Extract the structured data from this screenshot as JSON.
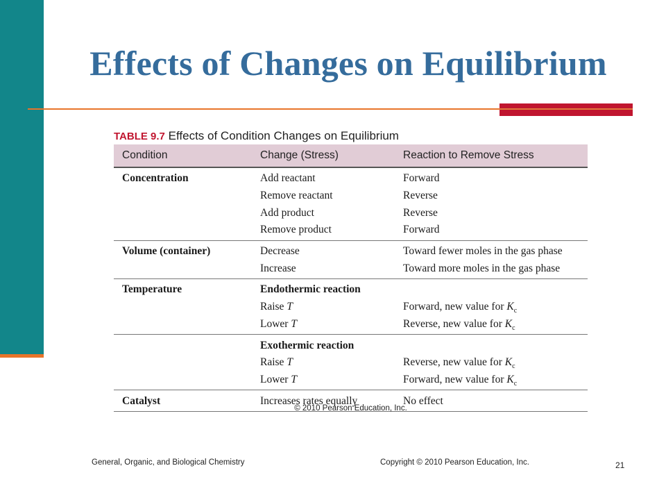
{
  "slide": {
    "title": "Effects of Changes on Equilibrium",
    "colors": {
      "sidebar": "#12868a",
      "accent_orange": "#e8742a",
      "accent_red": "#c0152f",
      "title": "#356c9c",
      "header_bg": "#e1ccd6"
    }
  },
  "table": {
    "label": "TABLE 9.7",
    "caption": "Effects of Condition Changes on Equilibrium",
    "headers": [
      "Condition",
      "Change (Stress)",
      "Reaction to Remove Stress"
    ],
    "groups": [
      {
        "rows": [
          {
            "condition": "Concentration",
            "change": "Add reactant",
            "reaction": "Forward"
          },
          {
            "condition": "",
            "change": "Remove reactant",
            "reaction": "Reverse"
          },
          {
            "condition": "",
            "change": "Add product",
            "reaction": "Reverse"
          },
          {
            "condition": "",
            "change": "Remove product",
            "reaction": "Forward"
          }
        ]
      },
      {
        "rows": [
          {
            "condition": "Volume (container)",
            "change": "Decrease",
            "reaction": "Toward fewer moles in the gas phase"
          },
          {
            "condition": "",
            "change": "Increase",
            "reaction": "Toward more moles in the gas phase"
          }
        ]
      },
      {
        "rows": [
          {
            "condition": "Temperature",
            "change": "Endothermic reaction",
            "reaction": ""
          },
          {
            "condition": "",
            "change_prefix": "Raise ",
            "change_var": "T",
            "reaction_prefix": "Forward, new value for ",
            "reaction_var": "K",
            "reaction_sub": "c"
          },
          {
            "condition": "",
            "change_prefix": "Lower ",
            "change_var": "T",
            "reaction_prefix": "Reverse, new value for ",
            "reaction_var": "K",
            "reaction_sub": "c"
          }
        ]
      },
      {
        "rows": [
          {
            "condition": "",
            "change": "Exothermic reaction",
            "reaction": ""
          },
          {
            "condition": "",
            "change_prefix": "Raise ",
            "change_var": "T",
            "reaction_prefix": "Reverse, new value for ",
            "reaction_var": "K",
            "reaction_sub": "c"
          },
          {
            "condition": "",
            "change_prefix": "Lower ",
            "change_var": "T",
            "reaction_prefix": "Forward, new value for ",
            "reaction_var": "K",
            "reaction_sub": "c"
          }
        ]
      },
      {
        "rows": [
          {
            "condition": "Catalyst",
            "change": "Increases rates equally",
            "reaction": "No effect"
          }
        ]
      }
    ],
    "copyright": "© 2010 Pearson Education, Inc."
  },
  "footer": {
    "left": "General,  Organic, and Biological Chemistry",
    "right": "Copyright © 2010 Pearson Education, Inc.",
    "page": "21"
  }
}
